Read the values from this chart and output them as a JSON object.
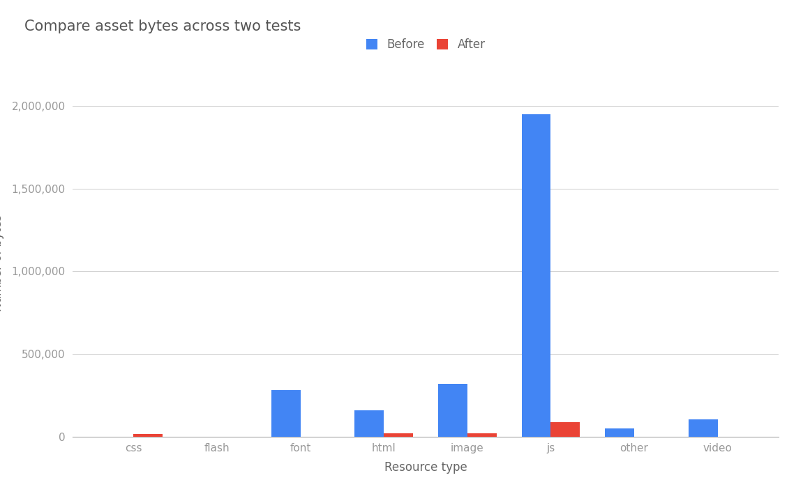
{
  "title": "Compare asset bytes across two tests",
  "xlabel": "Resource type",
  "categories": [
    "css",
    "flash",
    "font",
    "html",
    "image",
    "js",
    "other",
    "video"
  ],
  "before": [
    0,
    0,
    280000,
    160000,
    320000,
    1950000,
    50000,
    105000
  ],
  "after": [
    15000,
    0,
    0,
    20000,
    18000,
    85000,
    0,
    0
  ],
  "before_color": "#4285f4",
  "after_color": "#ea4335",
  "background_color": "#ffffff",
  "grid_color": "#cccccc",
  "title_color": "#555555",
  "label_color": "#666666",
  "tick_color": "#999999",
  "ylim": [
    0,
    2100000
  ],
  "yticks": [
    0,
    500000,
    1000000,
    1500000,
    2000000
  ],
  "legend_labels": [
    "Before",
    "After"
  ],
  "title_fontsize": 15,
  "axis_fontsize": 12,
  "tick_fontsize": 11,
  "legend_fontsize": 12
}
